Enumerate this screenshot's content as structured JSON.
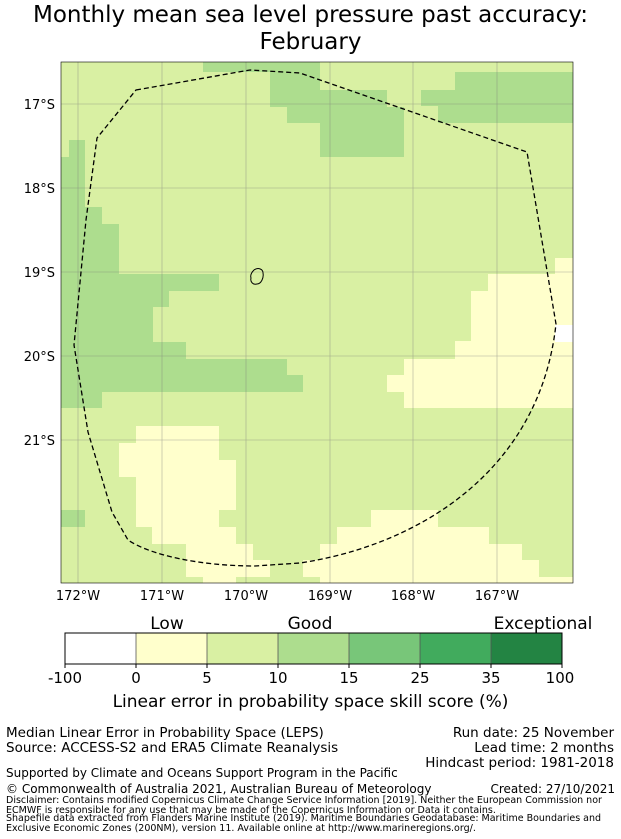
{
  "title_line1": "Monthly mean sea level pressure past accuracy:",
  "title_line2": "February",
  "map": {
    "lat_labels": [
      "17°S",
      "18°S",
      "19°S",
      "20°S",
      "21°S"
    ],
    "lon_labels": [
      "172°W",
      "171°W",
      "170°W",
      "169°W",
      "168°W",
      "167°W"
    ],
    "category_colors": {
      "cat0": "#ffffff",
      "cat1": "#ffffcc",
      "cat2": "#d9f0a3",
      "cat3": "#addd8e",
      "cat4": "#78c679",
      "cat5": "#41ab5d",
      "cat6": "#238443"
    }
  },
  "colorbar": {
    "category_labels": [
      "Low",
      "Good",
      "Exceptional"
    ],
    "ticks": [
      "-100",
      "0",
      "5",
      "10",
      "15",
      "25",
      "35",
      "100"
    ],
    "title": "Linear error in probability space skill score (%)"
  },
  "info": {
    "method": "Median Linear Error in Probability Space (LEPS)",
    "source": "Source: ACCESS-S2 and ERA5 Climate Reanalysis",
    "run_date": "Run date: 25 November",
    "lead_time": "Lead time: 2 months",
    "hindcast": "Hindcast period: 1981-2018",
    "support": "Supported by Climate and Oceans Support Program in the Pacific",
    "copyright": "© Commonwealth of Australia 2021, Australian Bureau of Meteorology",
    "created": "Created: 27/10/2021",
    "disclaimer1": "Disclaimer: Contains modified Copernicus Climate Change Service Information [2019]. Neither the European Commission nor",
    "disclaimer2": "ECMWF is responsible for any use that may be made of the Copernicus Information or Data it contains.",
    "disclaimer3": "Shapefile data extracted from Flanders Marine Institute (2019). Maritime Boundaries Geodatabase: Maritime Boundaries and",
    "disclaimer4": "Exclusive Economic Zones (200NM), version 11. Available online at http://www.marineregions.org/."
  }
}
